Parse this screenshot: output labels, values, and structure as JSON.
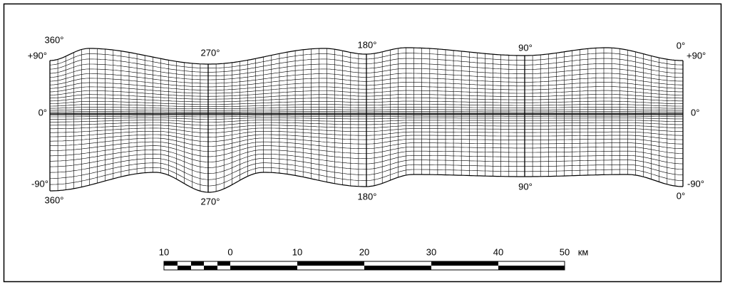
{
  "meridian_labels_top": [
    "360°",
    "270°",
    "180°",
    "90°",
    "0°"
  ],
  "meridian_labels_bottom": [
    "360°",
    "270°",
    "180°",
    "90°",
    "0°"
  ],
  "parallel_labels_left": [
    "+90°",
    "0°",
    "-90°"
  ],
  "parallel_labels_right": [
    "+90°",
    "0°",
    "-90°"
  ],
  "scale": {
    "labels": [
      "10",
      "0",
      "10",
      "20",
      "30",
      "40",
      "50"
    ],
    "unit": "км"
  }
}
